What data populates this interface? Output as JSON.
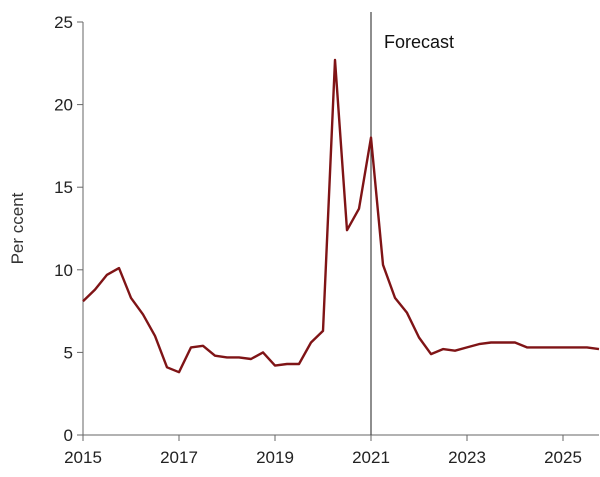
{
  "chart_data": {
    "type": "line",
    "title": "",
    "xlabel": "",
    "ylabel": "Per ccent",
    "xlim": [
      2015,
      2025.75
    ],
    "ylim": [
      0,
      25
    ],
    "x_ticks": [
      2015,
      2017,
      2019,
      2021,
      2023,
      2025
    ],
    "x_tick_labels": [
      "2015",
      "2017",
      "2019",
      "2021",
      "2023",
      "2025"
    ],
    "y_ticks": [
      0,
      5,
      10,
      15,
      20,
      25
    ],
    "y_tick_labels": [
      "0",
      "5",
      "10",
      "15",
      "20",
      "25"
    ],
    "grid": false,
    "legend": "none",
    "annotation": {
      "label": "Forecast",
      "x": 2021
    },
    "series": [
      {
        "color": "#7f1416",
        "x": [
          2015.0,
          2015.25,
          2015.5,
          2015.75,
          2016.0,
          2016.25,
          2016.5,
          2016.75,
          2017.0,
          2017.25,
          2017.5,
          2017.75,
          2018.0,
          2018.25,
          2018.5,
          2018.75,
          2019.0,
          2019.25,
          2019.5,
          2019.75,
          2020.0,
          2020.25,
          2020.5,
          2020.75,
          2021.0,
          2021.25,
          2021.5,
          2021.75,
          2022.0,
          2022.25,
          2022.5,
          2022.75,
          2023.0,
          2023.25,
          2023.5,
          2023.75,
          2024.0,
          2024.25,
          2024.5,
          2024.75,
          2025.0,
          2025.25,
          2025.5,
          2025.75
        ],
        "values": [
          8.1,
          8.8,
          9.7,
          10.1,
          8.3,
          7.3,
          6.0,
          4.1,
          3.8,
          5.3,
          5.4,
          4.8,
          4.7,
          4.7,
          4.6,
          5.0,
          4.2,
          4.3,
          4.3,
          5.6,
          6.3,
          22.7,
          12.4,
          13.7,
          18.0,
          10.3,
          8.3,
          7.4,
          5.9,
          4.9,
          5.2,
          5.1,
          5.3,
          5.5,
          5.6,
          5.6,
          5.6,
          5.3,
          5.3,
          5.3,
          5.3,
          5.3,
          5.3,
          5.2
        ]
      }
    ]
  }
}
